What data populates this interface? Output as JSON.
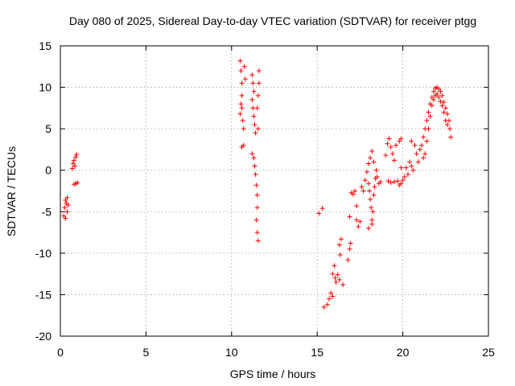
{
  "chart_data": {
    "type": "scatter",
    "title": "Day 080 of 2025, Sidereal Day-to-day VTEC variation (SDTVAR) for receiver ptgg",
    "xlabel": "GPS time / hours",
    "ylabel": "SDTVAR / TECUs",
    "xlim": [
      0,
      25
    ],
    "ylim": [
      -20,
      15
    ],
    "xticks": [
      0,
      5,
      10,
      15,
      20,
      25
    ],
    "yticks": [
      -20,
      -15,
      -10,
      -5,
      0,
      5,
      10,
      15
    ],
    "xtick_labels": [
      "0",
      "5",
      "10",
      "15",
      "20",
      "25"
    ],
    "ytick_labels": [
      "-20",
      "-15",
      "-10",
      "-5",
      "0",
      "5",
      "10",
      "15"
    ],
    "grid": true,
    "marker": "+",
    "color": "#ff0000",
    "series": [
      {
        "name": "SDTVAR",
        "points": [
          [
            0.2,
            -5.5
          ],
          [
            0.25,
            -4.5
          ],
          [
            0.3,
            -3.6
          ],
          [
            0.3,
            -5.8
          ],
          [
            0.35,
            -4.0
          ],
          [
            0.4,
            -3.3
          ],
          [
            0.4,
            -5.0
          ],
          [
            0.45,
            -4.2
          ],
          [
            0.7,
            0.2
          ],
          [
            0.75,
            0.8
          ],
          [
            0.8,
            1.2
          ],
          [
            0.85,
            0.5
          ],
          [
            0.9,
            1.6
          ],
          [
            0.95,
            1.9
          ],
          [
            0.8,
            -1.7
          ],
          [
            0.9,
            -1.6
          ],
          [
            1.0,
            -1.5
          ],
          [
            10.5,
            13.2
          ],
          [
            10.55,
            12.0
          ],
          [
            10.6,
            10.5
          ],
          [
            10.6,
            9.0
          ],
          [
            10.55,
            8.0
          ],
          [
            10.5,
            6.8
          ],
          [
            10.6,
            7.5
          ],
          [
            10.65,
            6.0
          ],
          [
            10.7,
            5.0
          ],
          [
            10.75,
            12.5
          ],
          [
            10.8,
            11.0
          ],
          [
            10.7,
            3.0
          ],
          [
            10.6,
            2.8
          ],
          [
            11.2,
            11.5
          ],
          [
            11.25,
            10.5
          ],
          [
            11.3,
            9.5
          ],
          [
            11.2,
            8.5
          ],
          [
            11.25,
            7.5
          ],
          [
            11.3,
            6.5
          ],
          [
            11.35,
            5.5
          ],
          [
            11.4,
            4.5
          ],
          [
            11.2,
            2.0
          ],
          [
            11.3,
            1.5
          ],
          [
            11.35,
            0.5
          ],
          [
            11.4,
            -0.5
          ],
          [
            11.45,
            -1.8
          ],
          [
            11.5,
            -3.0
          ],
          [
            11.5,
            -4.5
          ],
          [
            11.45,
            -6.0
          ],
          [
            11.5,
            -7.5
          ],
          [
            11.55,
            -8.5
          ],
          [
            11.6,
            12.0
          ],
          [
            11.6,
            10.5
          ],
          [
            11.55,
            9.0
          ],
          [
            11.5,
            7.5
          ],
          [
            11.55,
            5.0
          ],
          [
            15.1,
            -5.2
          ],
          [
            15.3,
            -4.6
          ],
          [
            15.4,
            -16.5
          ],
          [
            15.6,
            -16.2
          ],
          [
            15.7,
            -15.5
          ],
          [
            15.8,
            -14.8
          ],
          [
            15.9,
            -15.2
          ],
          [
            15.9,
            -12.5
          ],
          [
            16.0,
            -11.5
          ],
          [
            16.05,
            -13.0
          ],
          [
            16.1,
            -13.5
          ],
          [
            16.2,
            -12.6
          ],
          [
            16.3,
            -9.0
          ],
          [
            16.35,
            -10.2
          ],
          [
            16.4,
            -8.3
          ],
          [
            16.5,
            -13.8
          ],
          [
            16.3,
            -13.2
          ],
          [
            16.8,
            -10.8
          ],
          [
            16.9,
            -9.5
          ],
          [
            16.95,
            -8.8
          ],
          [
            16.9,
            -5.6
          ],
          [
            17.0,
            -2.7
          ],
          [
            17.1,
            -2.9
          ],
          [
            17.2,
            -2.5
          ],
          [
            17.3,
            -4.3
          ],
          [
            17.3,
            -6.0
          ],
          [
            17.4,
            -6.8
          ],
          [
            17.5,
            -6.2
          ],
          [
            17.6,
            -2.0
          ],
          [
            17.7,
            -2.5
          ],
          [
            17.8,
            -1.2
          ],
          [
            17.9,
            -0.2
          ],
          [
            18.0,
            0.8
          ],
          [
            18.1,
            1.5
          ],
          [
            18.2,
            2.3
          ],
          [
            18.3,
            1.0
          ],
          [
            18.0,
            -1.6
          ],
          [
            18.05,
            -2.5
          ],
          [
            18.1,
            -3.5
          ],
          [
            18.15,
            -4.5
          ],
          [
            18.2,
            -6.0
          ],
          [
            18.25,
            -5.0
          ],
          [
            18.3,
            -3.0
          ],
          [
            18.35,
            -2.0
          ],
          [
            18.4,
            -1.0
          ],
          [
            18.45,
            0.0
          ],
          [
            18.5,
            -0.8
          ],
          [
            18.6,
            -1.6
          ],
          [
            18.7,
            -1.4
          ],
          [
            18.2,
            -6.5
          ],
          [
            18.0,
            -7.0
          ],
          [
            19.0,
            1.8
          ],
          [
            19.1,
            3.2
          ],
          [
            19.2,
            3.8
          ],
          [
            19.3,
            2.8
          ],
          [
            19.4,
            2.0
          ],
          [
            19.5,
            1.2
          ],
          [
            19.6,
            3.0
          ],
          [
            19.8,
            3.5
          ],
          [
            19.9,
            3.8
          ],
          [
            19.9,
            0.3
          ],
          [
            19.7,
            -1.3
          ],
          [
            19.8,
            -1.8
          ],
          [
            19.9,
            -1.6
          ],
          [
            19.15,
            -1.3
          ],
          [
            19.3,
            -1.5
          ],
          [
            19.5,
            -1.4
          ],
          [
            20.0,
            -1.2
          ],
          [
            20.1,
            -0.8
          ],
          [
            20.2,
            0.3
          ],
          [
            20.3,
            -0.5
          ],
          [
            20.4,
            1.0
          ],
          [
            20.5,
            0.5
          ],
          [
            20.6,
            0.0
          ],
          [
            20.5,
            3.5
          ],
          [
            20.7,
            3.0
          ],
          [
            20.8,
            2.0
          ],
          [
            20.9,
            1.0
          ],
          [
            21.0,
            2.5
          ],
          [
            21.1,
            3.0
          ],
          [
            21.2,
            4.0
          ],
          [
            21.3,
            5.0
          ],
          [
            21.4,
            6.0
          ],
          [
            21.5,
            7.0
          ],
          [
            21.6,
            8.0
          ],
          [
            21.7,
            8.8
          ],
          [
            21.8,
            9.5
          ],
          [
            21.9,
            9.9
          ],
          [
            22.0,
            10.0
          ],
          [
            22.1,
            9.8
          ],
          [
            22.2,
            9.5
          ],
          [
            22.3,
            9.0
          ],
          [
            22.4,
            8.2
          ],
          [
            22.5,
            7.5
          ],
          [
            22.6,
            6.8
          ],
          [
            22.7,
            6.0
          ],
          [
            22.75,
            5.0
          ],
          [
            22.8,
            4.0
          ],
          [
            21.2,
            1.5
          ],
          [
            21.3,
            2.0
          ],
          [
            21.4,
            3.5
          ],
          [
            21.5,
            5.0
          ],
          [
            21.6,
            6.5
          ],
          [
            21.7,
            7.8
          ],
          [
            21.8,
            8.5
          ],
          [
            21.9,
            9.0
          ],
          [
            22.0,
            9.2
          ],
          [
            22.1,
            8.8
          ],
          [
            22.2,
            8.3
          ],
          [
            22.3,
            7.8
          ],
          [
            22.4,
            7.0
          ],
          [
            22.5,
            6.0
          ],
          [
            22.6,
            5.5
          ]
        ]
      }
    ]
  }
}
